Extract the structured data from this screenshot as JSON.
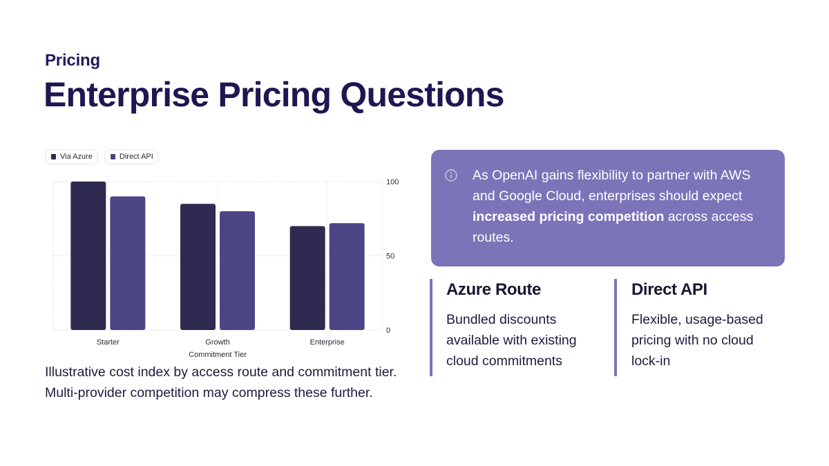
{
  "header": {
    "eyebrow": "Pricing",
    "title": "Enterprise Pricing Questions"
  },
  "colors": {
    "via_azure": "#2e2a52",
    "direct_api": "#4b4585",
    "accent": "#7b74b8",
    "heading": "#1f1652"
  },
  "chart_data": {
    "type": "bar",
    "categories": [
      "Starter",
      "Growth",
      "Enterprise"
    ],
    "series": [
      {
        "name": "Via Azure",
        "values": [
          100,
          85,
          70
        ],
        "color": "#2e2a52"
      },
      {
        "name": "Direct API",
        "values": [
          90,
          80,
          72
        ],
        "color": "#4b4585"
      }
    ],
    "xlabel": "Commitment Tier",
    "ylabel": "",
    "ylim": [
      0,
      100
    ],
    "yticks": [
      "0",
      "50",
      "100"
    ],
    "y_axis_side": "right",
    "grid": true,
    "legend": "top-left"
  },
  "caption": "Illustrative cost index by access route and commitment tier. Multi-provider competition may compress these further.",
  "callout": {
    "icon": "info-icon",
    "text_before": "As OpenAI gains flexibility to partner with AWS and Google Cloud, enterprises should expect ",
    "text_bold": "increased pricing competition",
    "text_after": " across access routes."
  },
  "columns": [
    {
      "heading": "Azure Route",
      "body": "Bundled discounts available with existing cloud commitments"
    },
    {
      "heading": "Direct API",
      "body": "Flexible, usage-based pricing with no cloud lock-in"
    }
  ]
}
